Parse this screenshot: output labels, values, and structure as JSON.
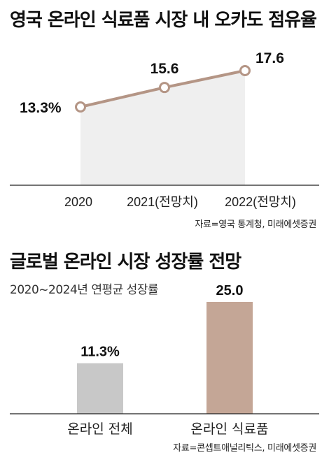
{
  "chart_data": [
    {
      "type": "area",
      "title": "영국 온라인 식료품 시장 내 오카도 점유율",
      "categories": [
        "2020",
        "2021(전망치)",
        "2022(전망치)"
      ],
      "values": [
        13.3,
        15.6,
        17.6
      ],
      "value_labels": [
        "13.3%",
        "15.6",
        "17.6"
      ],
      "source": "자료=영국 통계청, 미래에셋증권",
      "colors": {
        "line": "#b49585",
        "fill": "#efefef",
        "marker_fill": "#ffffff"
      }
    },
    {
      "type": "bar",
      "title": "글로벌 온라인 시장 성장률 전망",
      "subtitle": "2020~2024년 연평균 성장률",
      "categories": [
        "온라인 전체",
        "온라인 식료품"
      ],
      "values": [
        11.3,
        25.0
      ],
      "value_labels": [
        "11.3%",
        "25.0"
      ],
      "source": "자료=콘셉트애널리틱스, 미래에셋증권",
      "colors": [
        "#c8c8c8",
        "#c4a696"
      ]
    }
  ]
}
